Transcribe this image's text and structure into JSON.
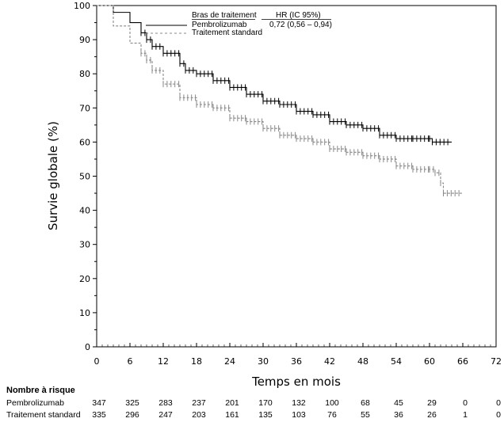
{
  "chart_data": {
    "type": "line",
    "title": "",
    "xlabel": "Temps en mois",
    "ylabel": "Survie globale (%)",
    "xlim": [
      0,
      72
    ],
    "ylim": [
      0,
      100
    ],
    "xticks": [
      0,
      6,
      12,
      18,
      24,
      30,
      36,
      42,
      48,
      54,
      60,
      66,
      72
    ],
    "yticks": [
      0,
      10,
      20,
      30,
      40,
      50,
      60,
      70,
      80,
      90,
      100
    ],
    "grid": false,
    "legend": {
      "placement": "top-center",
      "header_arm": "Bras de traitement",
      "header_hr": "HR (IC 95%)",
      "entries": [
        {
          "name": "Pembrolizumab",
          "hr": "0,72 (0,56 – 0,94)"
        },
        {
          "name": "Traitement standard",
          "hr": ""
        }
      ]
    },
    "series": [
      {
        "name": "Pembrolizumab",
        "style": "solid",
        "color": "#000000",
        "x": [
          0,
          3,
          6,
          8,
          9,
          10,
          12,
          15,
          16,
          18,
          21,
          24,
          27,
          30,
          33,
          36,
          39,
          42,
          45,
          48,
          51,
          54,
          57,
          60,
          60.5,
          64
        ],
        "y": [
          100,
          98,
          95,
          92,
          90,
          88,
          86,
          83,
          81,
          80,
          78,
          76,
          74,
          72,
          71,
          69,
          68,
          66,
          65,
          64,
          62,
          61,
          61,
          61,
          60,
          60
        ]
      },
      {
        "name": "Traitement standard",
        "style": "dashed",
        "color": "#888888",
        "x": [
          0,
          3,
          6,
          8,
          9,
          10,
          12,
          15,
          18,
          21,
          24,
          27,
          30,
          33,
          36,
          39,
          42,
          45,
          48,
          51,
          54,
          57,
          60,
          61,
          62,
          62.5,
          66
        ],
        "y": [
          100,
          94,
          89,
          86,
          84,
          81,
          77,
          73,
          71,
          70,
          67,
          66,
          64,
          62,
          61,
          60,
          58,
          57,
          56,
          55,
          53,
          52,
          52,
          51,
          48,
          45,
          45
        ]
      }
    ],
    "risk_table": {
      "title": "Nombre à risque",
      "times": [
        0,
        6,
        12,
        18,
        24,
        30,
        36,
        42,
        48,
        54,
        60,
        66,
        72
      ],
      "rows": [
        {
          "name": "Pembrolizumab",
          "values": [
            "347",
            "325",
            "283",
            "237",
            "201",
            "170",
            "132",
            "100",
            "68",
            "45",
            "29",
            "0",
            "0"
          ]
        },
        {
          "name": "Traitement standard",
          "values": [
            "335",
            "296",
            "247",
            "203",
            "161",
            "135",
            "103",
            "76",
            "55",
            "36",
            "26",
            "1",
            "0"
          ]
        }
      ]
    }
  }
}
